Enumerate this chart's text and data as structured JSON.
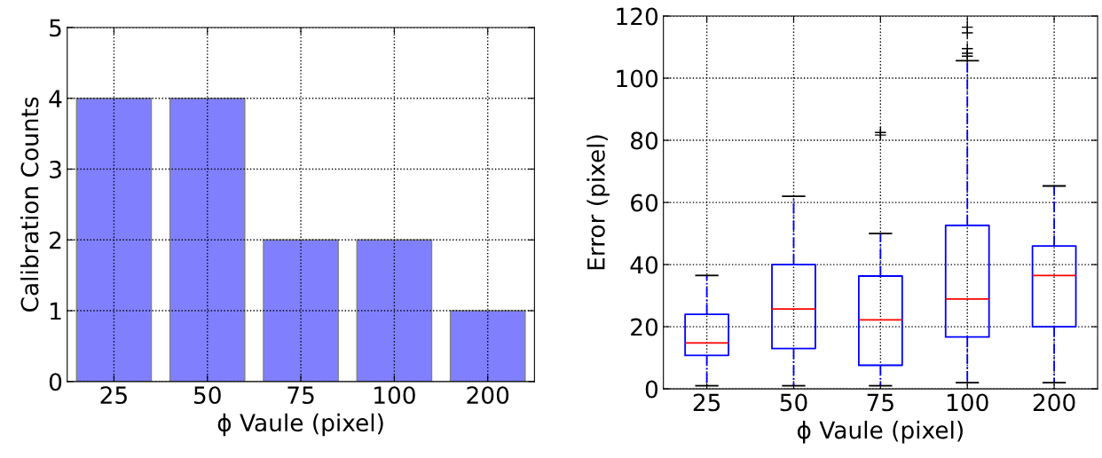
{
  "chart_data": [
    {
      "type": "bar",
      "categories": [
        "25",
        "50",
        "75",
        "100",
        "200"
      ],
      "values": [
        4,
        4,
        2,
        2,
        1
      ],
      "color": "#8080ff",
      "ylim": [
        0,
        5
      ],
      "yticks": [
        0,
        1,
        2,
        3,
        4,
        5
      ],
      "grid": true,
      "xlabel": "ϕ Vaule (pixel)",
      "ylabel": "Calibration Counts"
    },
    {
      "type": "box",
      "categories": [
        "25",
        "50",
        "75",
        "100",
        "200"
      ],
      "color": "#0000ff",
      "ylim": [
        0,
        120
      ],
      "yticks": [
        0,
        20,
        40,
        60,
        80,
        100,
        120
      ],
      "grid": true,
      "xlabel": "ϕ Vaule (pixel)",
      "ylabel": "Error (pixel)",
      "boxes": [
        {
          "low": 1,
          "q1": 10.8,
          "median": 14.8,
          "q3": 24,
          "high": 36.5
        },
        {
          "low": 1,
          "q1": 13,
          "median": 25.7,
          "q3": 40,
          "high": 62
        },
        {
          "low": 1,
          "q1": 7.6,
          "median": 22.2,
          "q3": 36.3,
          "high": 50,
          "outliers": [
            81.7,
            82.5
          ]
        },
        {
          "low": 2,
          "q1": 16.7,
          "median": 28.9,
          "q3": 52.6,
          "high": 105.6,
          "outliers": [
            107.1,
            108,
            109.5,
            114.6,
            116.4
          ]
        },
        {
          "low": 2,
          "q1": 20,
          "median": 36.5,
          "q3": 46,
          "high": 65.3
        }
      ]
    }
  ]
}
